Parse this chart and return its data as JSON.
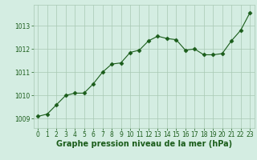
{
  "x": [
    0,
    1,
    2,
    3,
    4,
    5,
    6,
    7,
    8,
    9,
    10,
    11,
    12,
    13,
    14,
    15,
    16,
    17,
    18,
    19,
    20,
    21,
    22,
    23
  ],
  "y": [
    1009.1,
    1009.2,
    1009.6,
    1010.0,
    1010.1,
    1010.1,
    1010.5,
    1011.0,
    1011.35,
    1011.4,
    1011.85,
    1011.95,
    1012.35,
    1012.55,
    1012.45,
    1012.4,
    1011.95,
    1012.0,
    1011.75,
    1011.75,
    1011.8,
    1012.35,
    1012.8,
    1013.55
  ],
  "line_color": "#1a5c1a",
  "marker": "D",
  "marker_size": 2.5,
  "bg_color": "#d4ede2",
  "grid_color": "#a8c8b4",
  "xlabel": "Graphe pression niveau de la mer (hPa)",
  "xlabel_color": "#1a5c1a",
  "xlabel_fontsize": 7,
  "tick_color": "#1a5c1a",
  "tick_fontsize": 5.5,
  "ylim": [
    1008.6,
    1013.9
  ],
  "yticks": [
    1009,
    1010,
    1011,
    1012,
    1013
  ],
  "xlim": [
    -0.5,
    23.5
  ],
  "xticks": [
    0,
    1,
    2,
    3,
    4,
    5,
    6,
    7,
    8,
    9,
    10,
    11,
    12,
    13,
    14,
    15,
    16,
    17,
    18,
    19,
    20,
    21,
    22,
    23
  ]
}
